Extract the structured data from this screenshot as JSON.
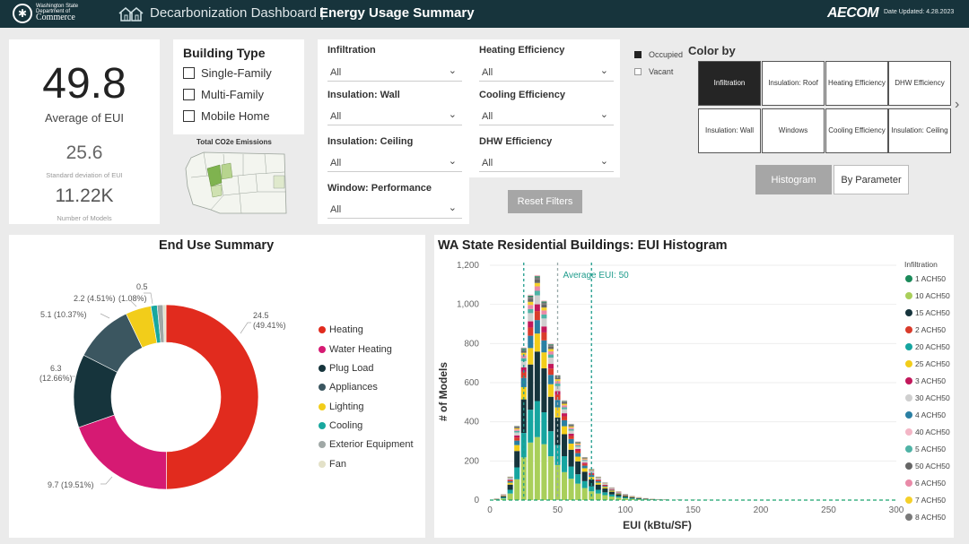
{
  "header": {
    "org_line1": "Washington State Department of",
    "org_line2": "Commerce",
    "title_light": "Decarbonization Dashboard |",
    "title_bold": "Energy Usage Summary",
    "brand": "AECOM",
    "updated": "Date Updated: 4.28.2023"
  },
  "kpis": {
    "avg_eui": "49.8",
    "avg_eui_label": "Average of EUI",
    "std_eui": "25.6",
    "std_eui_label": "Standard deviation of EUI",
    "num_models": "11.22K",
    "num_models_label": "Number of Models"
  },
  "building_type": {
    "title": "Building Type",
    "options": [
      "Single-Family",
      "Multi-Family",
      "Mobile Home"
    ],
    "map_title": "Total CO2e Emissions"
  },
  "filters": [
    {
      "label": "Infiltration",
      "value": "All"
    },
    {
      "label": "Insulation: Wall",
      "value": "All"
    },
    {
      "label": "Insulation: Ceiling",
      "value": "All"
    },
    {
      "label": "Window: Performance",
      "value": "All"
    },
    {
      "label": "Heating Efficiency",
      "value": "All"
    },
    {
      "label": "Cooling Efficiency",
      "value": "All"
    },
    {
      "label": "DHW Efficiency",
      "value": "All"
    }
  ],
  "reset_label": "Reset Filters",
  "occupancy": [
    {
      "label": "Occupied",
      "checked": true
    },
    {
      "label": "Vacant",
      "checked": false
    }
  ],
  "color_by": {
    "title": "Color by",
    "buttons": [
      "Infiltration",
      "Insulation: Roof",
      "Heating Efficiency",
      "DHW Efficiency",
      "Insulation: Wall",
      "Windows",
      "Cooling Efficiency",
      "Insulation: Ceiling"
    ],
    "selected": "Infiltration",
    "view_buttons": [
      "Histogram",
      "By Parameter"
    ]
  },
  "end_use": {
    "title": "End Use Summary",
    "slice_labels": [
      {
        "value": "24.5",
        "pct": "(49.41%)"
      },
      {
        "value": "9.7 (19.51%)"
      },
      {
        "value": "6.3",
        "pct": "(12.66%)"
      },
      {
        "value": "5.1 (10.37%)"
      },
      {
        "value": "2.2 (4.51%)"
      },
      {
        "value": "(1.08%)"
      },
      {
        "value": "0.5"
      }
    ]
  },
  "histogram": {
    "title": "WA State Residential Buildings: EUI Histogram",
    "annotation": "Average EUI: 50",
    "legend_title": "Infiltration",
    "legend": [
      {
        "label": "1 ACH50",
        "color": "#1b8a5a"
      },
      {
        "label": "10 ACH50",
        "color": "#a9cf5a"
      },
      {
        "label": "15 ACH50",
        "color": "#16343c"
      },
      {
        "label": "2 ACH50",
        "color": "#d93b2b"
      },
      {
        "label": "20 ACH50",
        "color": "#16a5a0"
      },
      {
        "label": "25 ACH50",
        "color": "#f2cd1a"
      },
      {
        "label": "3 ACH50",
        "color": "#c2185b"
      },
      {
        "label": "30 ACH50",
        "color": "#cfcfcf"
      },
      {
        "label": "4 ACH50",
        "color": "#2a7fa3"
      },
      {
        "label": "40 ACH50",
        "color": "#f3b6c6"
      },
      {
        "label": "5 ACH50",
        "color": "#4fb3a6"
      },
      {
        "label": "50 ACH50",
        "color": "#666666"
      },
      {
        "label": "6 ACH50",
        "color": "#e98aa8"
      },
      {
        "label": "7 ACH50",
        "color": "#f5d02a"
      },
      {
        "label": "8 ACH50",
        "color": "#7a7a7a"
      }
    ]
  },
  "chart_data": [
    {
      "type": "pie",
      "categories": [
        "Heating",
        "Water Heating",
        "Plug Load",
        "Appliances",
        "Lighting",
        "Cooling",
        "Exterior Equipment",
        "Fan"
      ],
      "values": [
        24.5,
        9.7,
        6.3,
        5.1,
        2.2,
        0.54,
        0.5,
        0.25
      ],
      "percents": [
        49.41,
        19.51,
        12.66,
        10.37,
        4.51,
        1.08,
        1.0,
        0.46
      ],
      "colors": [
        "#e12b1e",
        "#d61a73",
        "#16343c",
        "#3b5660",
        "#f2cd1a",
        "#18a79e",
        "#a0a8a6",
        "#e3e1c8"
      ],
      "title": "End Use Summary",
      "legend": "right"
    },
    {
      "type": "bar",
      "title": "WA State Residential Buildings: EUI Histogram",
      "xlabel": "EUI (kBtu/SF)",
      "ylabel": "# of Models",
      "xlim": [
        0,
        300
      ],
      "ylim": [
        0,
        1200
      ],
      "xticks": [
        "0",
        "50",
        "100",
        "150",
        "200",
        "250",
        "300"
      ],
      "yticks": [
        "0",
        "200",
        "400",
        "600",
        "800",
        "1,000",
        "1,200"
      ],
      "x": [
        5,
        10,
        15,
        20,
        25,
        30,
        35,
        40,
        45,
        50,
        55,
        60,
        65,
        70,
        75,
        80,
        85,
        90,
        95,
        100,
        105,
        110,
        115,
        120,
        125,
        130,
        140,
        150,
        160
      ],
      "values": [
        8,
        30,
        120,
        380,
        780,
        1050,
        1150,
        1020,
        800,
        640,
        510,
        390,
        300,
        220,
        160,
        120,
        90,
        65,
        45,
        32,
        22,
        15,
        10,
        7,
        5,
        4,
        3,
        2,
        1
      ],
      "reference_lines": [
        25,
        50,
        75
      ],
      "legend": "right"
    }
  ]
}
